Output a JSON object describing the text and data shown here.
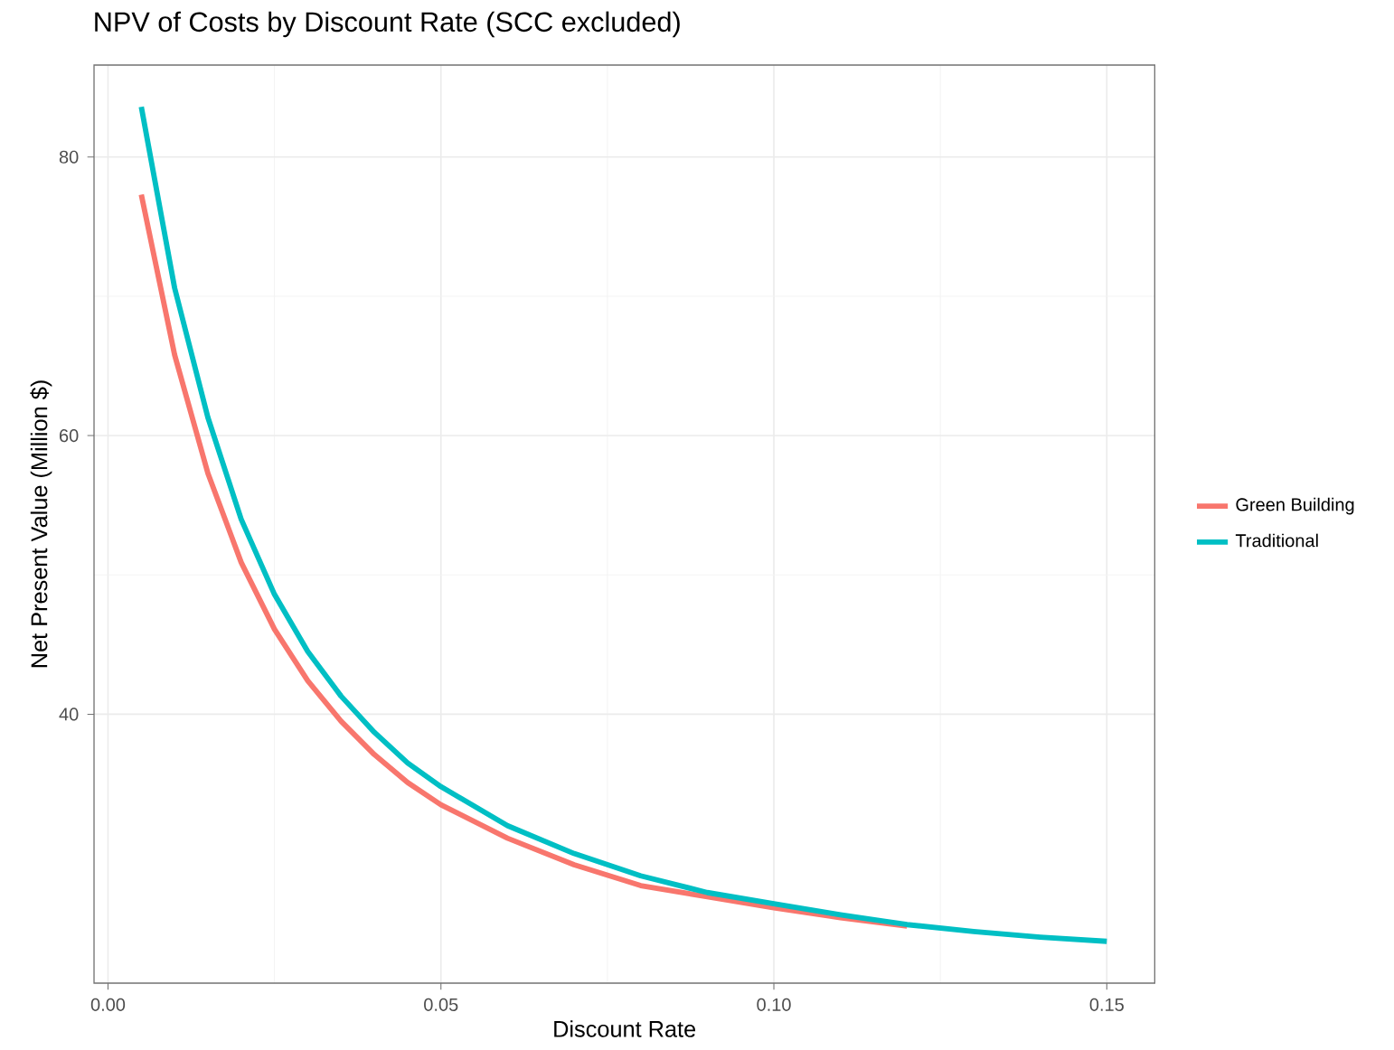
{
  "chart_data": {
    "type": "line",
    "title": "NPV of Costs by Discount Rate (SCC excluded)",
    "xlabel": "Discount Rate",
    "ylabel": "Net Present Value (Million $)",
    "x": [
      0.005,
      0.01,
      0.015,
      0.02,
      0.025,
      0.03,
      0.035,
      0.04,
      0.045,
      0.05,
      0.06,
      0.07,
      0.08,
      0.09,
      0.1,
      0.11,
      0.12,
      0.13,
      0.14,
      0.15
    ],
    "series": [
      {
        "name": "Green Building",
        "color": "#f8766d",
        "values": [
          77.3,
          65.8,
          57.3,
          50.9,
          46.1,
          42.4,
          39.5,
          37.1,
          35.1,
          33.5,
          31.1,
          29.2,
          27.7,
          26.9,
          26.1,
          25.4,
          24.8,
          null,
          null,
          null
        ]
      },
      {
        "name": "Traditional",
        "color": "#00bfc4",
        "values": [
          83.6,
          70.6,
          61.3,
          54.0,
          48.6,
          44.5,
          41.3,
          38.7,
          36.5,
          34.8,
          32.0,
          30.0,
          28.4,
          27.2,
          26.4,
          25.6,
          24.9,
          24.4,
          24.0,
          23.7
        ]
      }
    ],
    "xlim": [
      -0.0021,
      0.1572
    ],
    "ylim": [
      20.7,
      86.6
    ],
    "xticks": [
      {
        "value": 0.0,
        "label": "0.00"
      },
      {
        "value": 0.05,
        "label": "0.05"
      },
      {
        "value": 0.1,
        "label": "0.10"
      },
      {
        "value": 0.15,
        "label": "0.15"
      }
    ],
    "yticks": [
      40,
      60,
      80
    ],
    "grid": true,
    "legend": "right"
  }
}
